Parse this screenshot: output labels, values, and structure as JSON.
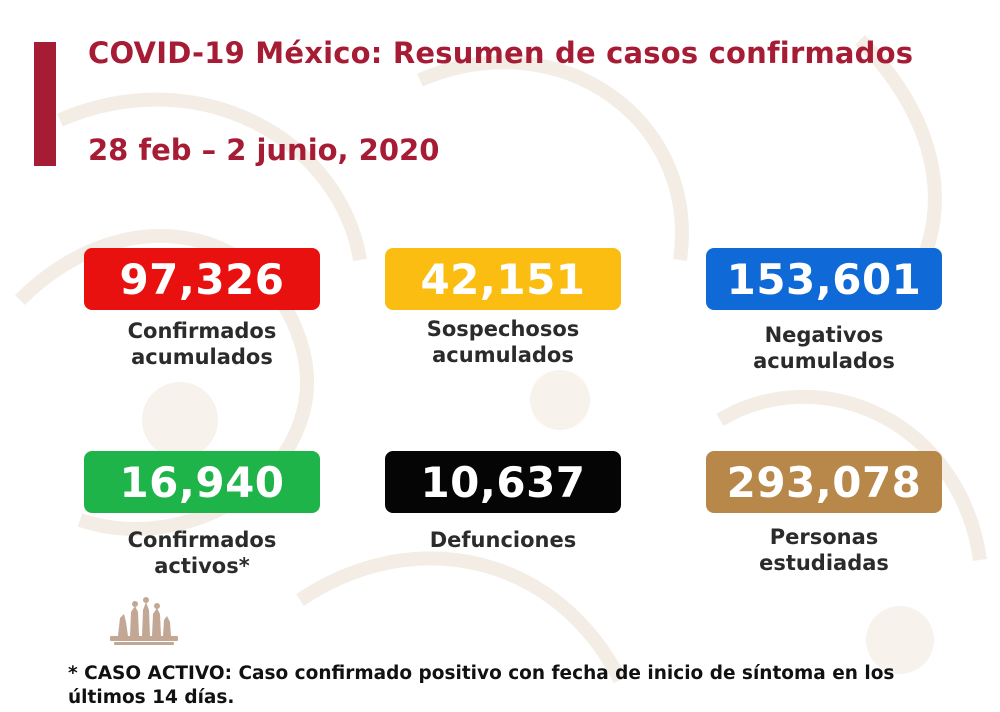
{
  "header": {
    "title": "COVID-19 México: Resumen de casos confirmados",
    "date_range": "28 feb – 2 junio, 2020"
  },
  "stats": [
    {
      "value": "97,326",
      "label_line1": "Confirmados",
      "label_line2": "acumulados",
      "color": "#e8110f"
    },
    {
      "value": "42,151",
      "label_line1": "Sospechosos",
      "label_line2": "acumulados",
      "color": "#fbbd12"
    },
    {
      "value": "153,601",
      "label_line1": "Negativos",
      "label_line2": "acumulados",
      "color": "#0f6ad8"
    },
    {
      "value": "16,940",
      "label_line1": "Confirmados",
      "label_line2": "activos*",
      "color": "#1fb44a"
    },
    {
      "value": "10,637",
      "label_line1": "Defunciones",
      "label_line2": "",
      "color": "#050505"
    },
    {
      "value": "293,078",
      "label_line1": "Personas",
      "label_line2": "estudiadas",
      "color": "#b8884a"
    }
  ],
  "footnote": {
    "line1": "* CASO ACTIVO: Caso confirmado positivo con fecha de inicio de síntoma en los",
    "line2": "últimos 14 días."
  },
  "colors": {
    "title": "#a61c34",
    "accent_bar": "#a61c34"
  },
  "logo": {
    "name": "government-emblem"
  }
}
